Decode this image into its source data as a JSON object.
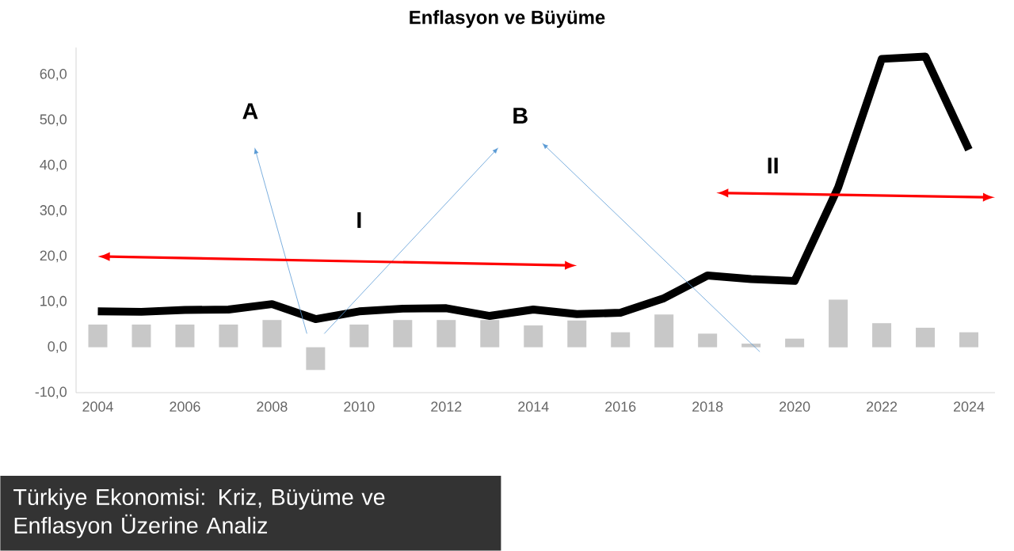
{
  "chart_data": {
    "type": "line",
    "title": "Enflasyon ve Büyüme",
    "x": [
      2004,
      2005,
      2006,
      2007,
      2008,
      2009,
      2010,
      2011,
      2012,
      2013,
      2014,
      2015,
      2016,
      2017,
      2018,
      2019,
      2020,
      2021,
      2022,
      2023,
      2024
    ],
    "series": [
      {
        "type": "bar",
        "color": "#c8c8c8",
        "values": [
          5,
          5,
          5,
          5,
          6,
          -5,
          5,
          6,
          6,
          6,
          4.8,
          5.9,
          3.3,
          7.2,
          3.0,
          0.8,
          1.9,
          10.5,
          5.3,
          4.3,
          3.3
        ]
      },
      {
        "color": "#000000",
        "values": [
          7.9,
          7.8,
          8.2,
          8.3,
          9.5,
          6.2,
          7.9,
          8.5,
          8.6,
          6.9,
          8.3,
          7.3,
          7.6,
          10.8,
          15.8,
          15.0,
          14.6,
          35.2,
          63.5,
          64.0,
          43.5
        ]
      }
    ],
    "xlim": [
      2003.5,
      2024.6
    ],
    "xticks": [
      2004,
      2006,
      2008,
      2010,
      2012,
      2014,
      2016,
      2018,
      2020,
      2022,
      2024
    ],
    "ylim": [
      -10,
      66
    ],
    "yticks": [
      {
        "value": -10,
        "label": "-10,0"
      },
      {
        "value": 0,
        "label": "0,0"
      },
      {
        "value": 10,
        "label": "10,0"
      },
      {
        "value": 20,
        "label": "20,0"
      },
      {
        "value": 30,
        "label": "30,0"
      },
      {
        "value": 40,
        "label": "40,0"
      },
      {
        "value": 50,
        "label": "50,0"
      },
      {
        "value": 60,
        "label": "60,0"
      }
    ],
    "annotations": [
      "A",
      "B",
      "I",
      "II",
      "Türkiye Ekonomisi: Kriz, Büyüme ve Enflasyon Üzerine Analiz"
    ],
    "grid": false
  }
}
